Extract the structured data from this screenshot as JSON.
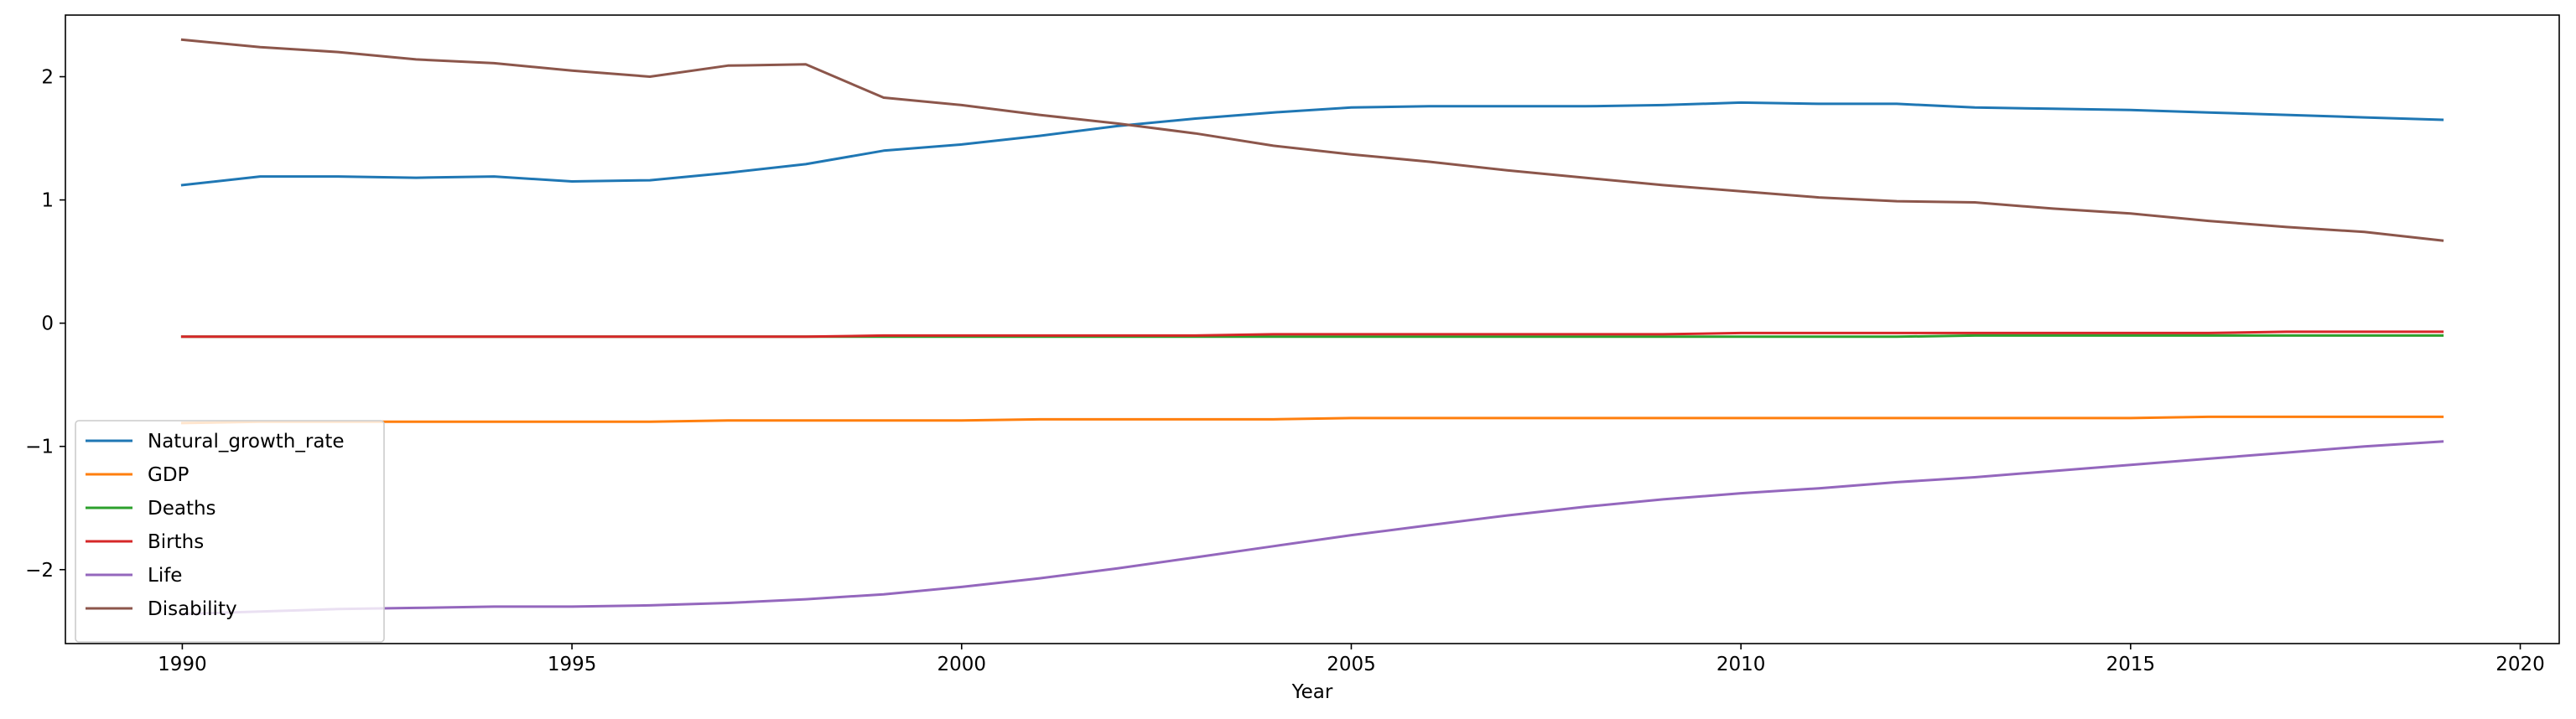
{
  "chart_data": {
    "type": "line",
    "title": "",
    "xlabel": "Year",
    "ylabel": "",
    "xlim": [
      1988.5,
      2020.5
    ],
    "ylim": [
      -2.6,
      2.5
    ],
    "grid": false,
    "legend_position": "lower-left",
    "x_ticks": [
      1990,
      1995,
      2000,
      2005,
      2010,
      2015,
      2020
    ],
    "y_ticks": [
      -2,
      -1,
      0,
      1,
      2
    ],
    "x_tick_labels": [
      "1990",
      "1995",
      "2000",
      "2005",
      "2010",
      "2015",
      "2020"
    ],
    "y_tick_labels": [
      "−2",
      "−1",
      "0",
      "1",
      "2"
    ],
    "x": [
      1990,
      1991,
      1992,
      1993,
      1994,
      1995,
      1996,
      1997,
      1998,
      1999,
      2000,
      2001,
      2002,
      2003,
      2004,
      2005,
      2006,
      2007,
      2008,
      2009,
      2010,
      2011,
      2012,
      2013,
      2014,
      2015,
      2016,
      2017,
      2018,
      2019
    ],
    "series": [
      {
        "name": "Natural_growth_rate",
        "color": "#1f77b4",
        "values": [
          1.12,
          1.19,
          1.19,
          1.18,
          1.19,
          1.15,
          1.16,
          1.22,
          1.29,
          1.4,
          1.45,
          1.52,
          1.6,
          1.66,
          1.71,
          1.75,
          1.76,
          1.76,
          1.76,
          1.77,
          1.79,
          1.78,
          1.78,
          1.75,
          1.74,
          1.73,
          1.71,
          1.69,
          1.67,
          1.65
        ]
      },
      {
        "name": "GDP",
        "color": "#ff7f0e",
        "values": [
          -0.81,
          -0.8,
          -0.8,
          -0.8,
          -0.8,
          -0.8,
          -0.8,
          -0.79,
          -0.79,
          -0.79,
          -0.79,
          -0.78,
          -0.78,
          -0.78,
          -0.78,
          -0.77,
          -0.77,
          -0.77,
          -0.77,
          -0.77,
          -0.77,
          -0.77,
          -0.77,
          -0.77,
          -0.77,
          -0.77,
          -0.76,
          -0.76,
          -0.76,
          -0.76
        ]
      },
      {
        "name": "Deaths",
        "color": "#2ca02c",
        "values": [
          -0.11,
          -0.11,
          -0.11,
          -0.11,
          -0.11,
          -0.11,
          -0.11,
          -0.11,
          -0.11,
          -0.11,
          -0.11,
          -0.11,
          -0.11,
          -0.11,
          -0.11,
          -0.11,
          -0.11,
          -0.11,
          -0.11,
          -0.11,
          -0.11,
          -0.11,
          -0.11,
          -0.1,
          -0.1,
          -0.1,
          -0.1,
          -0.1,
          -0.1,
          -0.1
        ]
      },
      {
        "name": "Births",
        "color": "#d62728",
        "values": [
          -0.11,
          -0.11,
          -0.11,
          -0.11,
          -0.11,
          -0.11,
          -0.11,
          -0.11,
          -0.11,
          -0.1,
          -0.1,
          -0.1,
          -0.1,
          -0.1,
          -0.09,
          -0.09,
          -0.09,
          -0.09,
          -0.09,
          -0.09,
          -0.08,
          -0.08,
          -0.08,
          -0.08,
          -0.08,
          -0.08,
          -0.08,
          -0.07,
          -0.07,
          -0.07
        ]
      },
      {
        "name": "Life",
        "color": "#9467bd",
        "values": [
          -2.36,
          -2.34,
          -2.32,
          -2.31,
          -2.3,
          -2.3,
          -2.29,
          -2.27,
          -2.24,
          -2.2,
          -2.14,
          -2.07,
          -1.99,
          -1.9,
          -1.81,
          -1.72,
          -1.64,
          -1.56,
          -1.49,
          -1.43,
          -1.38,
          -1.34,
          -1.29,
          -1.25,
          -1.2,
          -1.15,
          -1.1,
          -1.05,
          -1.0,
          -0.96
        ]
      },
      {
        "name": "Disability",
        "color": "#8c564b",
        "values": [
          2.3,
          2.24,
          2.2,
          2.14,
          2.11,
          2.05,
          2.0,
          2.09,
          2.1,
          1.83,
          1.77,
          1.69,
          1.62,
          1.54,
          1.44,
          1.37,
          1.31,
          1.24,
          1.18,
          1.12,
          1.07,
          1.02,
          0.99,
          0.98,
          0.93,
          0.89,
          0.83,
          0.78,
          0.74,
          0.67
        ]
      }
    ]
  }
}
